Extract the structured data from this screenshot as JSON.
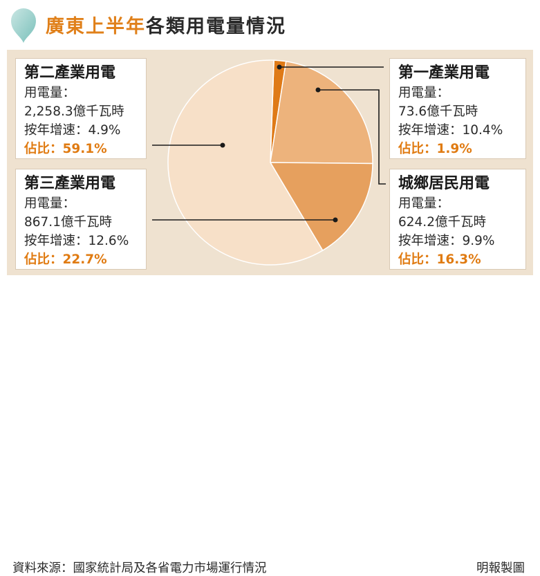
{
  "title": {
    "highlight": "廣東上半年",
    "rest": "各類用電量情況"
  },
  "colors": {
    "accent": "#e07b12",
    "first": "#df7a17",
    "second": "#f7e0c8",
    "third": "#edb37c",
    "residential": "#e6a05e"
  },
  "chart_data": {
    "type": "pie",
    "title": "廣東上半年各類用電量情況",
    "unit": "億千瓦時",
    "slices": [
      {
        "name": "第一產業用電",
        "value": 73.6,
        "growth": 10.4,
        "share": 1.9
      },
      {
        "name": "第三產業用電",
        "value": 867.1,
        "growth": 12.6,
        "share": 22.7
      },
      {
        "name": "城鄉居民用電",
        "value": 624.2,
        "growth": 9.9,
        "share": 16.3
      },
      {
        "name": "第二產業用電",
        "value": 2258.3,
        "growth": 4.9,
        "share": 59.1
      }
    ]
  },
  "boxes": {
    "second": {
      "name": "第二產業用電",
      "l1": "用電量：",
      "l2": "2,258.3億千瓦時",
      "l3": "按年增速：4.9%",
      "l4": "佔比：59.1%"
    },
    "third": {
      "name": "第三產業用電",
      "l1": "用電量：",
      "l2": "867.1億千瓦時",
      "l3": "按年增速：12.6%",
      "l4": "佔比：22.7%"
    },
    "first": {
      "name": "第一產業用電",
      "l1": "用電量：",
      "l2": "73.6億千瓦時",
      "l3": "按年增速：10.4%",
      "l4": "佔比：1.9%"
    },
    "residential": {
      "name": "城鄉居民用電",
      "l1": "用電量：",
      "l2": "624.2億千瓦時",
      "l3": "按年增速：9.9%",
      "l4": "佔比：16.3%"
    }
  },
  "footer": {
    "source": "資料來源：國家統計局及各省電力市場運行情況",
    "credit": "明報製圖"
  }
}
